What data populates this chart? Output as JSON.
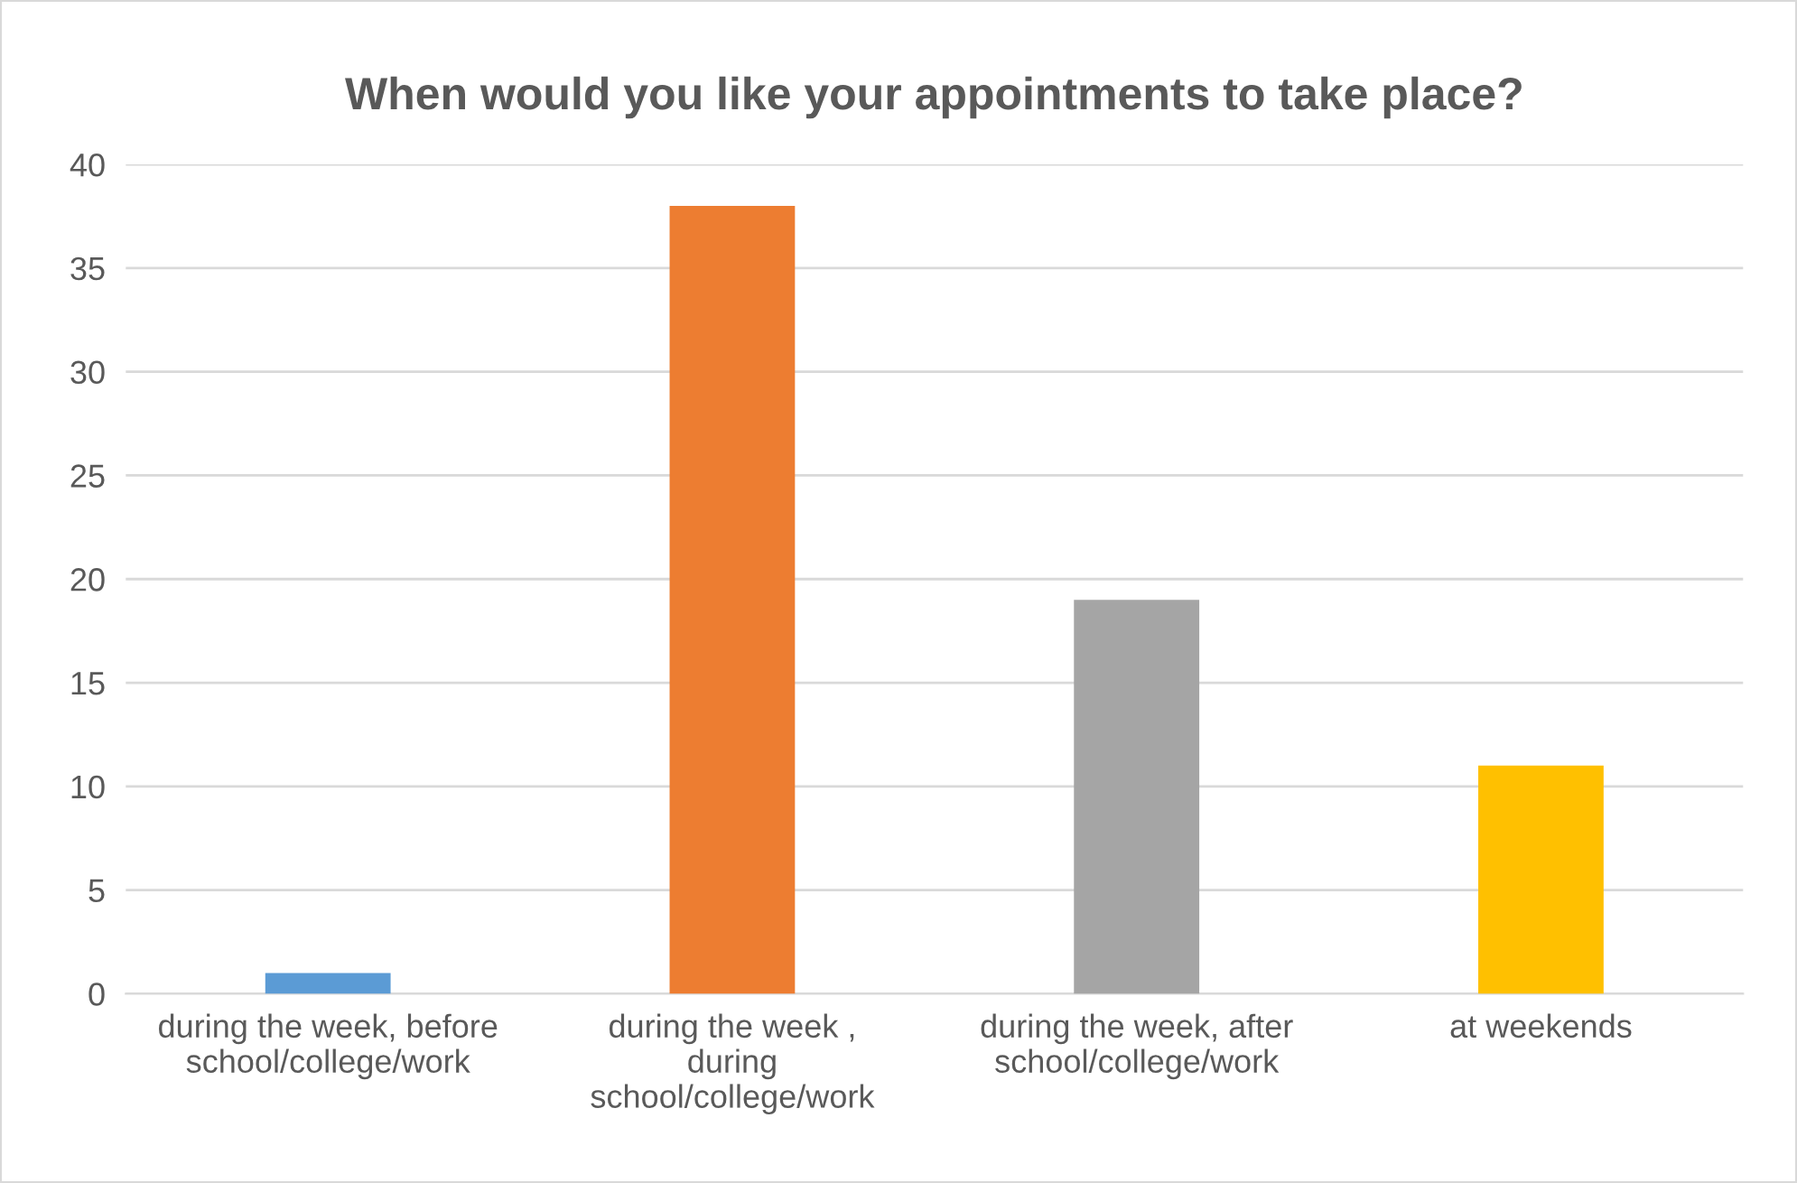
{
  "chart_data": {
    "type": "bar",
    "title": "When would you like your appointments to take place?",
    "categories": [
      "during the week, before\nschool/college/work",
      "during the week ,\nduring\nschool/college/work",
      "during the week, after\nschool/college/work",
      "at weekends"
    ],
    "values": [
      1,
      38,
      19,
      11
    ],
    "colors": [
      "#5b9bd5",
      "#ed7d31",
      "#a5a5a5",
      "#ffc000"
    ],
    "ylim": [
      0,
      40
    ],
    "yticks": [
      0,
      5,
      10,
      15,
      20,
      25,
      30,
      35,
      40
    ],
    "grid": "y"
  }
}
